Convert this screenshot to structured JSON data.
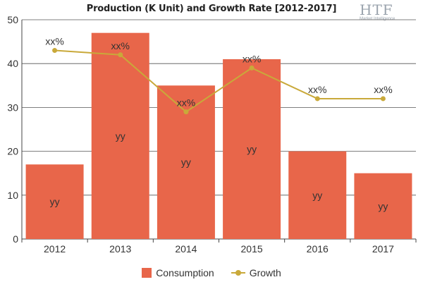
{
  "logo": {
    "text": "HTF",
    "subtitle": "Market Intelligence",
    "color": "#9aa3ad"
  },
  "chart_data": {
    "type": "bar",
    "title": "Production (K Unit) and Growth Rate [2012-2017]",
    "xlabel": "",
    "ylabel": "",
    "categories": [
      "2012",
      "2013",
      "2014",
      "2015",
      "2016",
      "2017"
    ],
    "ylim": [
      0,
      50
    ],
    "yticks": [
      0,
      10,
      20,
      30,
      40,
      50
    ],
    "grid": true,
    "legend_position": "bottom",
    "series": [
      {
        "name": "Consumption",
        "type": "bar",
        "color": "#e8664a",
        "values": [
          17,
          47,
          35,
          41,
          20,
          15
        ],
        "labels": [
          "yy",
          "yy",
          "yy",
          "yy",
          "yy",
          "yy"
        ]
      },
      {
        "name": "Growth",
        "type": "line",
        "color": "#c9a93a",
        "values": [
          43,
          42,
          29,
          39,
          32,
          32
        ],
        "labels": [
          "xx%",
          "xx%",
          "xx%",
          "xx%",
          "xx%",
          "xx%"
        ]
      }
    ]
  }
}
